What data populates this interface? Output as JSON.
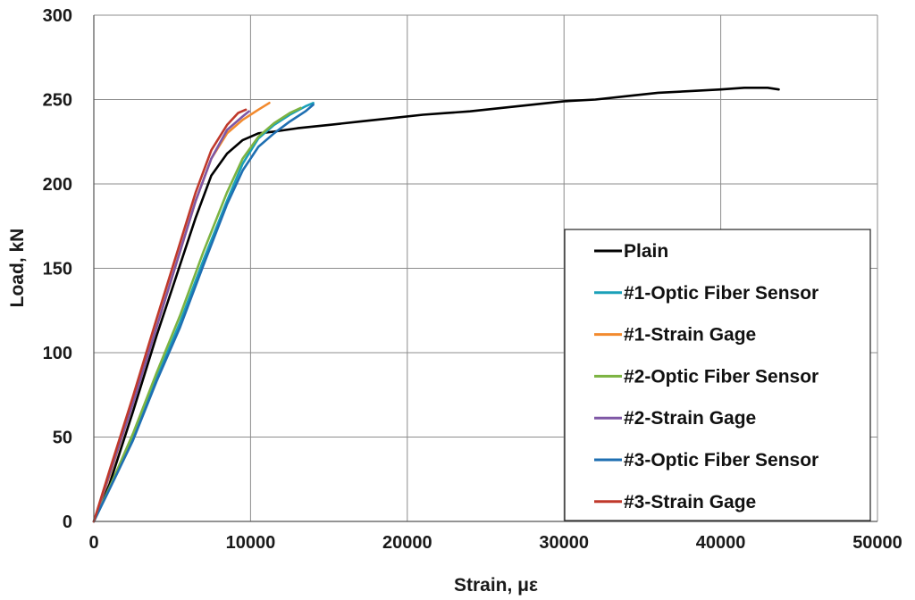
{
  "chart_data": {
    "type": "line",
    "title": "",
    "xlabel": "Strain, με",
    "ylabel": "Load, kN",
    "xlim": [
      0,
      50000
    ],
    "ylim": [
      0,
      300
    ],
    "x_ticks": [
      0,
      10000,
      20000,
      30000,
      40000,
      50000
    ],
    "y_ticks": [
      0,
      50,
      100,
      150,
      200,
      250,
      300
    ],
    "grid": true,
    "legend_position": "right",
    "series": [
      {
        "name": "Plain",
        "color": "#000000",
        "points": [
          [
            0,
            0
          ],
          [
            1000,
            22
          ],
          [
            2500,
            65
          ],
          [
            4000,
            110
          ],
          [
            5500,
            152
          ],
          [
            6500,
            180
          ],
          [
            7500,
            205
          ],
          [
            8500,
            218
          ],
          [
            9500,
            226
          ],
          [
            10500,
            230
          ],
          [
            11500,
            231
          ],
          [
            13000,
            233
          ],
          [
            15000,
            235
          ],
          [
            17000,
            237
          ],
          [
            19000,
            239
          ],
          [
            21000,
            241
          ],
          [
            22500,
            242
          ],
          [
            24000,
            243
          ],
          [
            26000,
            245
          ],
          [
            28000,
            247
          ],
          [
            30000,
            249
          ],
          [
            32000,
            250
          ],
          [
            34000,
            252
          ],
          [
            36000,
            254
          ],
          [
            38000,
            255
          ],
          [
            40000,
            256
          ],
          [
            41500,
            257
          ],
          [
            43000,
            257
          ],
          [
            43700,
            256
          ]
        ]
      },
      {
        "name": "#1-Optic Fiber Sensor",
        "color": "#1aa0b8",
        "points": [
          [
            0,
            0
          ],
          [
            1000,
            20
          ],
          [
            2500,
            50
          ],
          [
            4000,
            85
          ],
          [
            5500,
            118
          ],
          [
            7000,
            155
          ],
          [
            8500,
            190
          ],
          [
            9500,
            212
          ],
          [
            10500,
            227
          ],
          [
            11500,
            235
          ],
          [
            12500,
            241
          ],
          [
            13500,
            246
          ],
          [
            14000,
            248
          ]
        ]
      },
      {
        "name": "#1-Strain Gage",
        "color": "#f28a2e",
        "points": [
          [
            0,
            0
          ],
          [
            1000,
            27
          ],
          [
            2500,
            70
          ],
          [
            4000,
            115
          ],
          [
            5500,
            160
          ],
          [
            6500,
            190
          ],
          [
            7500,
            215
          ],
          [
            8500,
            230
          ],
          [
            9500,
            238
          ],
          [
            10500,
            244
          ],
          [
            11200,
            248
          ]
        ]
      },
      {
        "name": "#2-Optic Fiber Sensor",
        "color": "#7cb342",
        "points": [
          [
            0,
            0
          ],
          [
            1000,
            20
          ],
          [
            2500,
            52
          ],
          [
            4000,
            88
          ],
          [
            5500,
            122
          ],
          [
            7000,
            160
          ],
          [
            8500,
            195
          ],
          [
            9500,
            215
          ],
          [
            10500,
            228
          ],
          [
            11500,
            236
          ],
          [
            12500,
            242
          ],
          [
            13200,
            245
          ]
        ]
      },
      {
        "name": "#2-Strain Gage",
        "color": "#7e57a5",
        "points": [
          [
            0,
            0
          ],
          [
            1000,
            28
          ],
          [
            2500,
            70
          ],
          [
            4000,
            115
          ],
          [
            5500,
            160
          ],
          [
            6500,
            190
          ],
          [
            7500,
            215
          ],
          [
            8500,
            232
          ],
          [
            9500,
            240
          ],
          [
            9900,
            243
          ]
        ]
      },
      {
        "name": "#3-Optic Fiber Sensor",
        "color": "#1f6fb2",
        "points": [
          [
            0,
            0
          ],
          [
            1000,
            19
          ],
          [
            2500,
            48
          ],
          [
            4000,
            83
          ],
          [
            5500,
            115
          ],
          [
            7000,
            152
          ],
          [
            8500,
            188
          ],
          [
            9500,
            208
          ],
          [
            10500,
            222
          ],
          [
            11500,
            230
          ],
          [
            12500,
            237
          ],
          [
            13500,
            243
          ],
          [
            14000,
            247
          ]
        ]
      },
      {
        "name": "#3-Strain Gage",
        "color": "#c0392b",
        "points": [
          [
            0,
            0
          ],
          [
            1000,
            30
          ],
          [
            2500,
            74
          ],
          [
            4000,
            120
          ],
          [
            5500,
            165
          ],
          [
            6500,
            195
          ],
          [
            7500,
            220
          ],
          [
            8500,
            235
          ],
          [
            9200,
            242
          ],
          [
            9700,
            244
          ]
        ]
      }
    ]
  }
}
